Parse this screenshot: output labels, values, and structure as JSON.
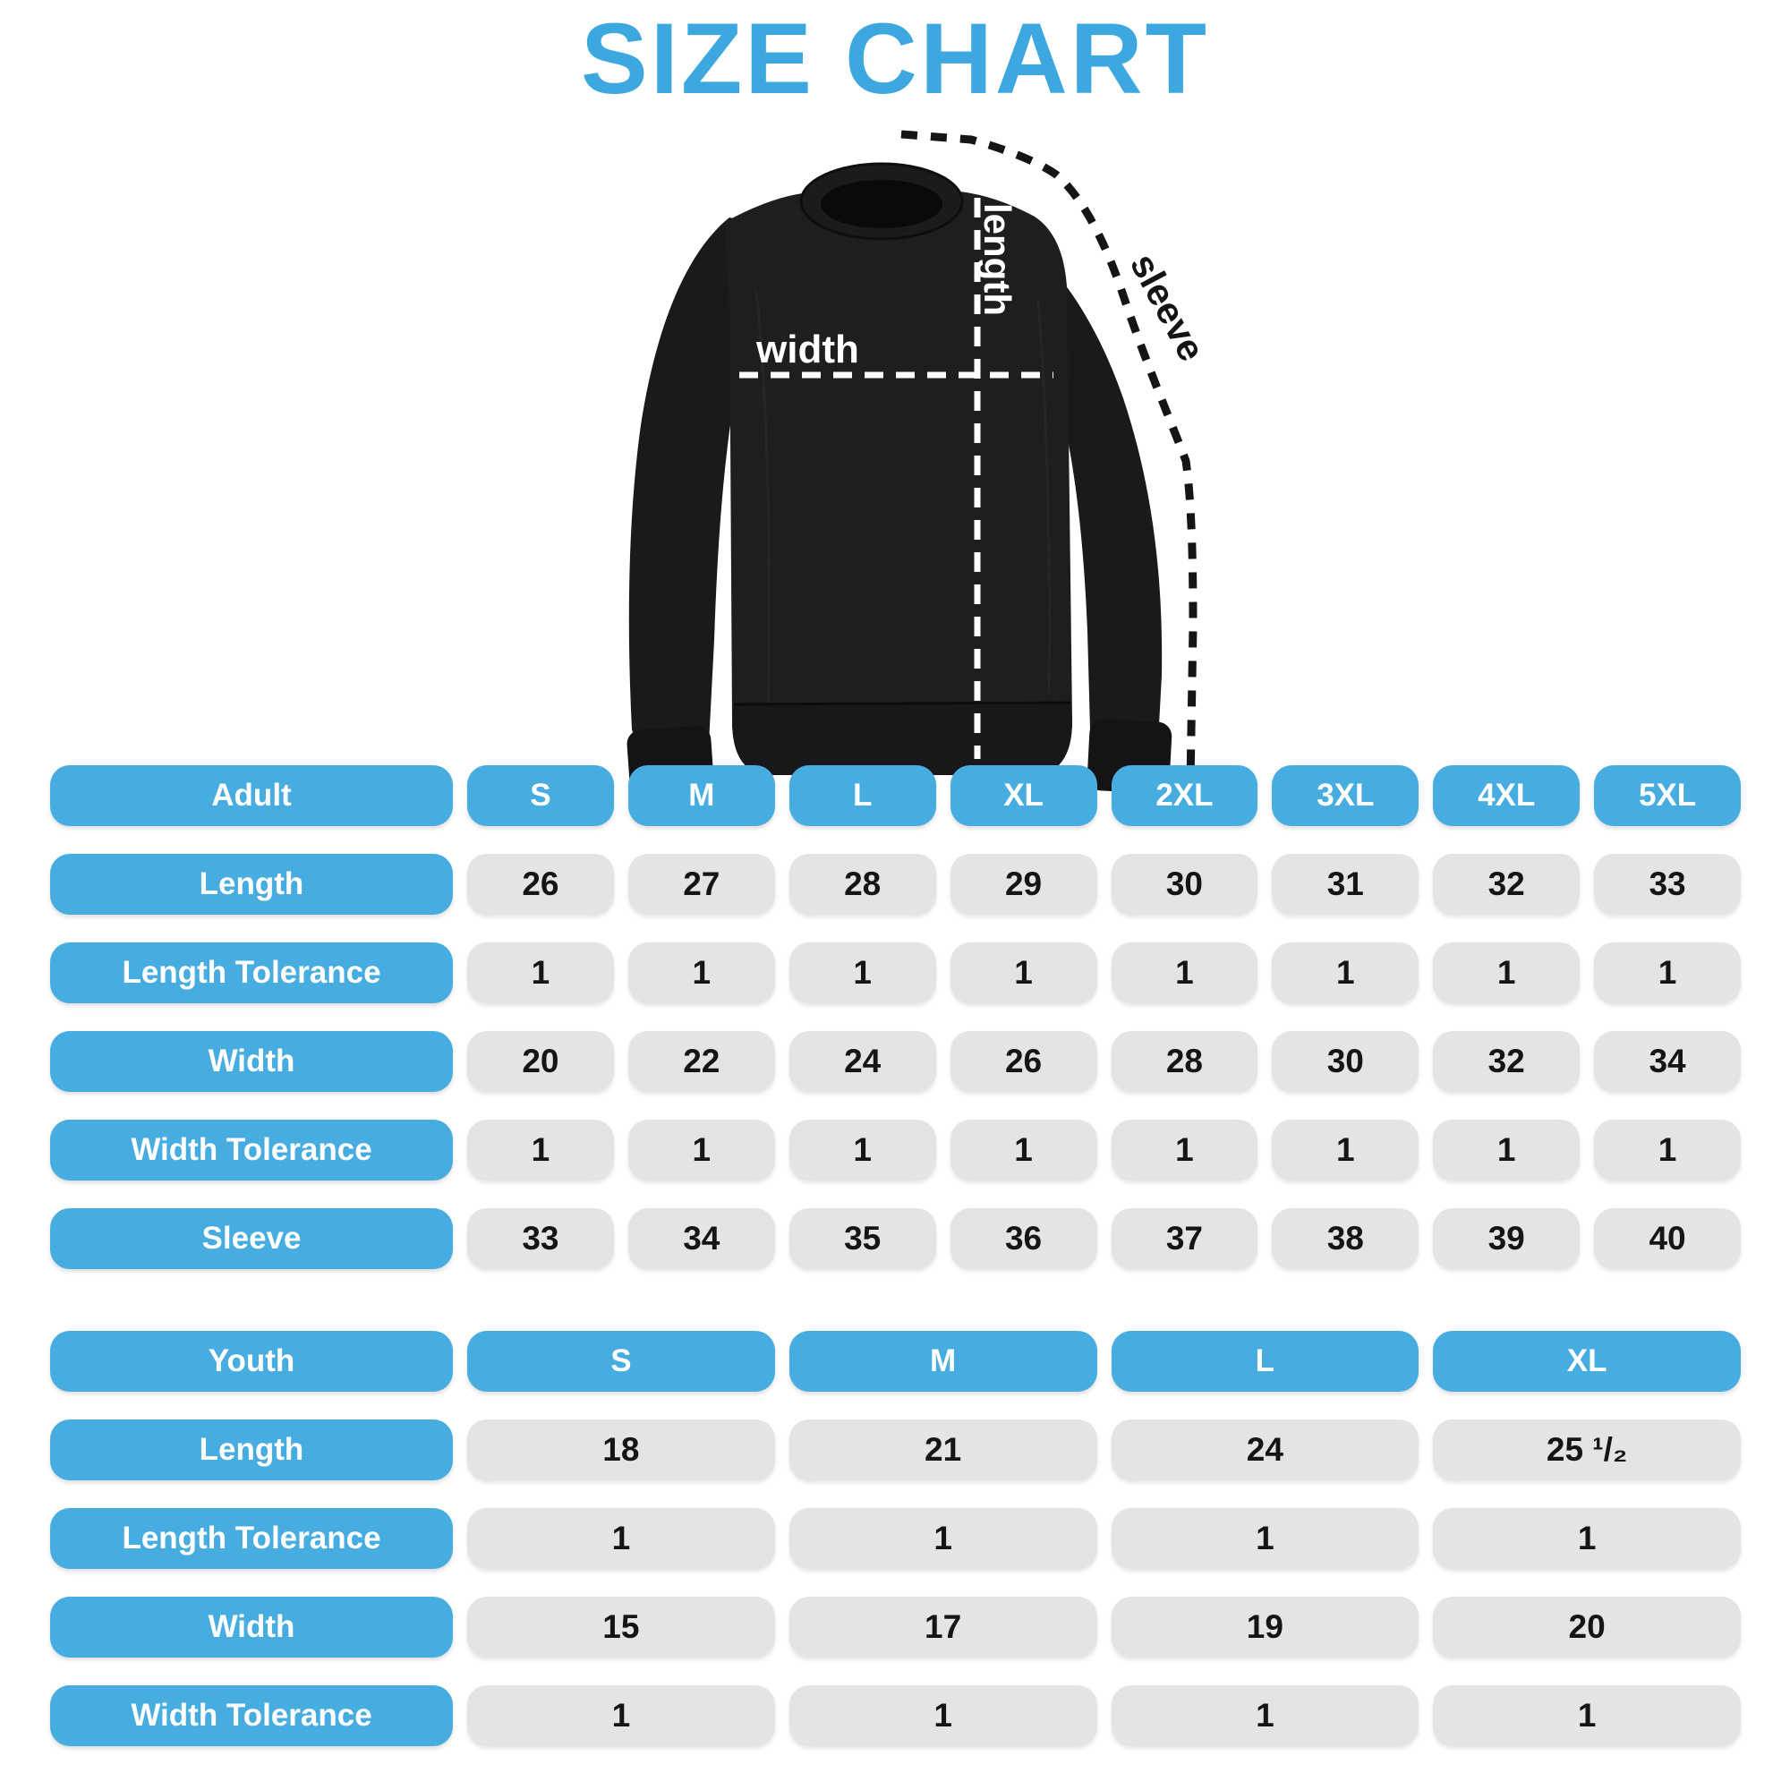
{
  "title": "SIZE CHART",
  "colors": {
    "accent_blue": "#47ACE0",
    "title_blue": "#3DA8DF",
    "cell_gray": "#E4E4E6",
    "value_text": "#151515",
    "garment": "#1C1C1E"
  },
  "diagram": {
    "labels": {
      "width": "width",
      "length": "length",
      "sleeve": "sleeve"
    }
  },
  "adult_table": {
    "header": {
      "label": "Adult",
      "sizes": [
        "S",
        "M",
        "L",
        "XL",
        "2XL",
        "3XL",
        "4XL",
        "5XL"
      ]
    },
    "rows": [
      {
        "label": "Length",
        "values": [
          "26",
          "27",
          "28",
          "29",
          "30",
          "31",
          "32",
          "33"
        ]
      },
      {
        "label": "Length Tolerance",
        "values": [
          "1",
          "1",
          "1",
          "1",
          "1",
          "1",
          "1",
          "1"
        ]
      },
      {
        "label": "Width",
        "values": [
          "20",
          "22",
          "24",
          "26",
          "28",
          "30",
          "32",
          "34"
        ]
      },
      {
        "label": "Width Tolerance",
        "values": [
          "1",
          "1",
          "1",
          "1",
          "1",
          "1",
          "1",
          "1"
        ]
      },
      {
        "label": "Sleeve",
        "values": [
          "33",
          "34",
          "35",
          "36",
          "37",
          "38",
          "39",
          "40"
        ]
      }
    ]
  },
  "youth_table": {
    "header": {
      "label": "Youth",
      "sizes": [
        "S",
        "M",
        "L",
        "XL"
      ]
    },
    "rows": [
      {
        "label": "Length",
        "values": [
          "18",
          "21",
          "24",
          "25 ¹/₂"
        ]
      },
      {
        "label": "Length Tolerance",
        "values": [
          "1",
          "1",
          "1",
          "1"
        ]
      },
      {
        "label": "Width",
        "values": [
          "15",
          "17",
          "19",
          "20"
        ]
      },
      {
        "label": "Width Tolerance",
        "values": [
          "1",
          "1",
          "1",
          "1"
        ]
      }
    ]
  }
}
